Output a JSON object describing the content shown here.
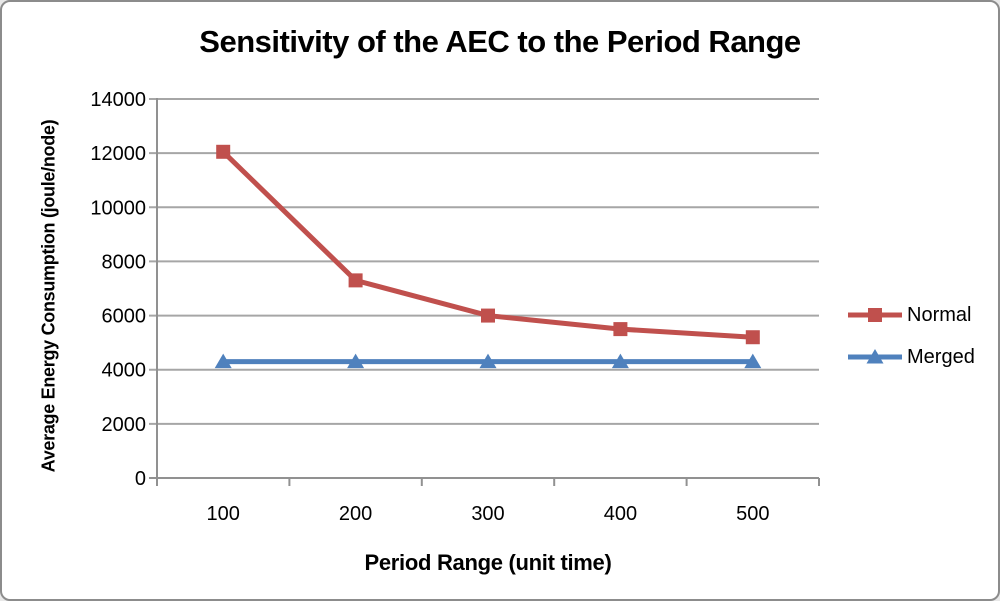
{
  "chart_data": {
    "type": "line",
    "title": "Sensitivity of the AEC to the Period Range",
    "xlabel": "Period Range (unit time)",
    "ylabel": "Average Energy Consumption (joule/node)",
    "categories": [
      "100",
      "200",
      "300",
      "400",
      "500"
    ],
    "y_ticks": [
      0,
      2000,
      4000,
      6000,
      8000,
      10000,
      12000,
      14000
    ],
    "ylim": [
      0,
      14000
    ],
    "grid": "horizontal",
    "legend_position": "right",
    "series": [
      {
        "name": "Normal",
        "color": "#C0504D",
        "marker": "square",
        "values": [
          12050,
          7300,
          6000,
          5500,
          5200
        ]
      },
      {
        "name": "Merged",
        "color": "#4F81BD",
        "marker": "triangle",
        "values": [
          4300,
          4300,
          4300,
          4300,
          4300
        ]
      }
    ],
    "colors": {
      "grid": "#A6A6A6",
      "axis": "#919191",
      "text": "#000000",
      "background": "#FFFFFF",
      "frame": "#8C8C8C"
    }
  }
}
